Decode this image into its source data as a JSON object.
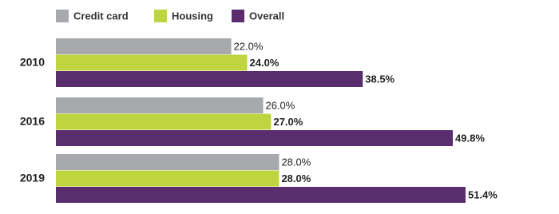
{
  "chart_data": {
    "type": "bar",
    "orientation": "horizontal",
    "categories": [
      "2010",
      "2016",
      "2019"
    ],
    "series": [
      {
        "name": "Credit card",
        "color": "#a7a9ac",
        "values": [
          22.0,
          26.0,
          28.0
        ],
        "value_labels": [
          "22.0%",
          "26.0%",
          "28.0%"
        ]
      },
      {
        "name": "Housing",
        "color": "#bfd540",
        "values": [
          24.0,
          27.0,
          28.0
        ],
        "value_labels": [
          "24.0%",
          "27.0%",
          "28.0%"
        ]
      },
      {
        "name": "Overall",
        "color": "#5a2d6e",
        "values": [
          38.5,
          49.8,
          51.4
        ],
        "value_labels": [
          "38.5%",
          "49.8%",
          "51.4%"
        ]
      }
    ]
  }
}
